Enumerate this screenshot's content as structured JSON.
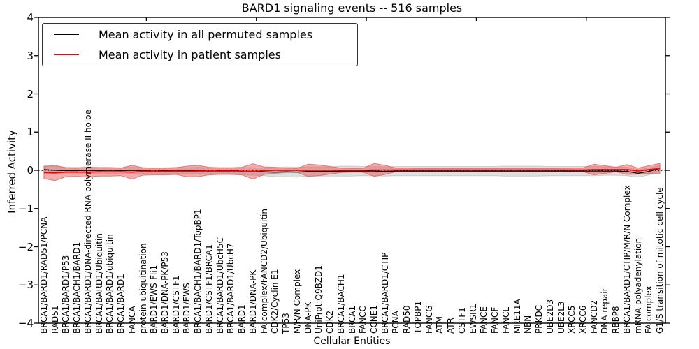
{
  "title": "BARD1 signaling events -- 516 samples",
  "legend": {
    "items": [
      {
        "label": "Mean activity in all permuted samples",
        "color": "#000000"
      },
      {
        "label": "Mean activity in patient samples",
        "color": "#ff0000"
      }
    ]
  },
  "axes": {
    "ylabel": "Inferred Activity",
    "xlabel": "Cellular Entities",
    "ytick_labels": [
      "4",
      "3",
      "2",
      "1",
      "0",
      "−1",
      "−2",
      "−3",
      "−4"
    ],
    "ytick_values": [
      4,
      3,
      2,
      1,
      0,
      -1,
      -2,
      -3,
      -4
    ]
  },
  "colors": {
    "permuted_line": "#000000",
    "patient_line": "#ff0000",
    "permuted_band": "#c0c0c0",
    "patient_band": "#e25b5b",
    "frame": "#000000"
  },
  "chart_data": {
    "type": "line",
    "title": "BARD1 signaling events -- 516 samples",
    "xlabel": "Cellular Entities",
    "ylabel": "Inferred Activity",
    "ylim": [
      -4,
      4
    ],
    "grid": false,
    "legend_position": "upper left",
    "zero_line": {
      "y": 0,
      "style": "dotted",
      "color": "#000000"
    },
    "top_tick_positions": [
      10,
      20,
      30,
      40,
      50
    ],
    "categories": [
      "BRCA1/BARD1/RAD51/PCNA",
      "RAD51",
      "BRCA1/BARD1/P53",
      "BRCA1/BACH1/BARD1",
      "BRCA1/BARD1/DNA-directed RNA polymerase II holoe",
      "BRCA1/BARD1/Ubiquitin",
      "BRCA1/BARD1/ubiquitin",
      "BRCA1/BARD1",
      "FANCA",
      "protein ubiquitination",
      "BARD1/EWS-Fli1",
      "BARD1/DNA-PK/P53",
      "BARD1/CSTF1",
      "BARD1/EWS",
      "BRCA1/BACH1/BARD1/TopBP1",
      "BARD1/CSTF1/BRCA1",
      "BRCA1/BARD1/UbcH5C",
      "BRCA1/BARD1/UbcH7",
      "BARD1",
      "BARD1/DNA-PK",
      "FA complex/FANCD2/Ubiquitin",
      "CDK2/Cyclin E1",
      "TP53",
      "M/R/N Complex",
      "DNA-PK",
      "UniProt:Q9BZD1",
      "CDK2",
      "BRCA1/BACH1",
      "BRCA1",
      "FANCC",
      "CCNE1",
      "BRCA1/BARD1/CTIP",
      "PCNA",
      "RAD50",
      "TOPBP1",
      "FANCG",
      "ATM",
      "ATR",
      "CSTF1",
      "EWSR1",
      "FANCE",
      "FANCF",
      "FANCL",
      "MRE11A",
      "NBN",
      "PRKDC",
      "UBE2D3",
      "UBE2L3",
      "XRCC5",
      "XRCC6",
      "FANCD2",
      "DNA repair",
      "RBBP8",
      "BRCA1/BARD1/CTIP/M/R/N Complex",
      "mRNA polyadenylation",
      "FA complex",
      "G1/S transition of mitotic cell cycle"
    ],
    "series": [
      {
        "name": "Mean activity in all permuted samples",
        "color": "#000000",
        "band_color": "#c0c0c0",
        "values": [
          0.02,
          0.0,
          -0.01,
          -0.01,
          0.0,
          -0.01,
          0.0,
          -0.01,
          0.0,
          -0.01,
          -0.02,
          -0.01,
          0.0,
          -0.01,
          0.0,
          -0.02,
          -0.01,
          -0.01,
          -0.02,
          -0.03,
          -0.04,
          -0.05,
          -0.04,
          -0.05,
          -0.03,
          -0.03,
          -0.03,
          -0.02,
          -0.02,
          -0.02,
          -0.02,
          -0.03,
          -0.02,
          -0.02,
          -0.02,
          -0.02,
          -0.02,
          -0.02,
          -0.02,
          -0.02,
          -0.02,
          -0.02,
          -0.02,
          -0.02,
          -0.02,
          -0.02,
          -0.02,
          -0.02,
          -0.02,
          -0.02,
          -0.02,
          -0.02,
          -0.02,
          -0.03,
          -0.08,
          -0.03,
          0.05
        ],
        "band_halfwidth": [
          0.1,
          0.1,
          0.09,
          0.09,
          0.09,
          0.09,
          0.08,
          0.08,
          0.08,
          0.08,
          0.08,
          0.08,
          0.08,
          0.08,
          0.08,
          0.08,
          0.08,
          0.08,
          0.09,
          0.1,
          0.1,
          0.12,
          0.13,
          0.13,
          0.12,
          0.12,
          0.12,
          0.13,
          0.13,
          0.12,
          0.12,
          0.12,
          0.12,
          0.12,
          0.12,
          0.12,
          0.12,
          0.12,
          0.12,
          0.12,
          0.12,
          0.12,
          0.13,
          0.13,
          0.13,
          0.13,
          0.12,
          0.12,
          0.12,
          0.12,
          0.12,
          0.11,
          0.11,
          0.11,
          0.1,
          0.09,
          0.08
        ]
      },
      {
        "name": "Mean activity in patient samples",
        "color": "#ff0000",
        "band_color": "#e25b5b",
        "values": [
          -0.06,
          -0.07,
          -0.05,
          -0.05,
          -0.05,
          -0.04,
          -0.04,
          -0.04,
          -0.05,
          -0.03,
          -0.03,
          -0.03,
          -0.02,
          -0.03,
          -0.02,
          -0.02,
          -0.02,
          -0.02,
          -0.02,
          -0.03,
          -0.01,
          0.0,
          0.0,
          0.0,
          0.0,
          0.0,
          0.0,
          0.0,
          0.0,
          0.0,
          0.01,
          0.01,
          0.01,
          0.01,
          0.01,
          0.01,
          0.01,
          0.01,
          0.01,
          0.01,
          0.01,
          0.01,
          0.01,
          0.01,
          0.01,
          0.01,
          0.01,
          0.01,
          0.01,
          0.01,
          0.02,
          0.02,
          0.02,
          0.02,
          -0.02,
          0.02,
          0.05
        ],
        "band_halfwidth": [
          0.16,
          0.2,
          0.12,
          0.11,
          0.13,
          0.11,
          0.11,
          0.1,
          0.18,
          0.1,
          0.09,
          0.09,
          0.09,
          0.14,
          0.15,
          0.1,
          0.09,
          0.09,
          0.1,
          0.2,
          0.1,
          0.08,
          0.06,
          0.05,
          0.16,
          0.14,
          0.1,
          0.06,
          0.05,
          0.05,
          0.17,
          0.12,
          0.05,
          0.05,
          0.04,
          0.04,
          0.04,
          0.04,
          0.04,
          0.04,
          0.04,
          0.04,
          0.04,
          0.04,
          0.04,
          0.04,
          0.04,
          0.04,
          0.05,
          0.05,
          0.14,
          0.1,
          0.06,
          0.13,
          0.08,
          0.1,
          0.13
        ]
      }
    ]
  }
}
